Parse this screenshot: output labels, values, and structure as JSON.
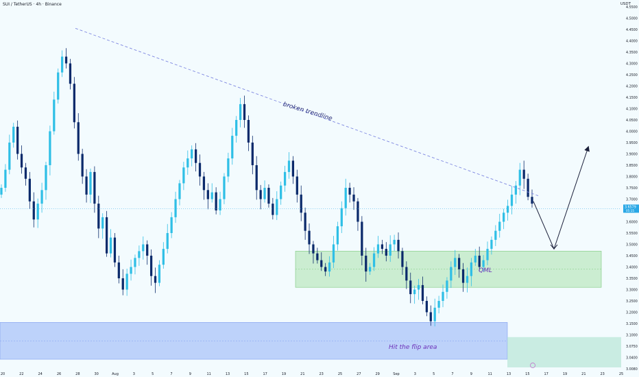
{
  "header": {
    "symbol_line": "SUI / TetherUS · 4h · Binance",
    "currency": "USDT"
  },
  "colors": {
    "background": "#f3fbfe",
    "candle_up": "#2fbfe6",
    "candle_down": "#0b2a6b",
    "trendline": "#7d86e0",
    "qml_zone": "#9bdc9b",
    "flip_zone": "#8fb0f5",
    "price_tag": "#29a8e6"
  },
  "chart_data": {
    "type": "candlestick",
    "symbol": "SUI / TetherUS",
    "interval": "4h",
    "exchange": "Binance",
    "quote": "USDT",
    "ylim": [
      3.0,
      4.6
    ],
    "y_ticks": [
      "4.5500",
      "4.5000",
      "4.4500",
      "4.4000",
      "4.3500",
      "4.3000",
      "4.2500",
      "4.2000",
      "4.1500",
      "4.1000",
      "4.0500",
      "4.0000",
      "3.9500",
      "3.9000",
      "3.8500",
      "3.8000",
      "3.7500",
      "3.7000",
      "3.6500",
      "3.6000",
      "3.5500",
      "3.5000",
      "3.4500",
      "3.4000",
      "3.3500",
      "3.3000",
      "3.2500",
      "3.2000",
      "3.1500",
      "3.1000",
      "3.0750",
      "3.0400",
      "3.0080"
    ],
    "x_ticks": [
      "20",
      "22",
      "24",
      "26",
      "28",
      "30",
      "Aug",
      "3",
      "5",
      "7",
      "9",
      "11",
      "13",
      "15",
      "17",
      "19",
      "21",
      "23",
      "25",
      "27",
      "29",
      "Sep",
      "3",
      "5",
      "7",
      "9",
      "11",
      "13",
      "15",
      "17",
      "19",
      "21",
      "23",
      "25"
    ],
    "current_price": "3.6579",
    "price_tag_sub": "05:15",
    "closes": [
      3.75,
      3.83,
      3.95,
      4.02,
      3.9,
      3.84,
      3.79,
      3.69,
      3.61,
      3.68,
      3.74,
      3.85,
      4.0,
      4.14,
      4.26,
      4.33,
      4.3,
      4.21,
      4.04,
      3.9,
      3.8,
      3.72,
      3.82,
      3.68,
      3.57,
      3.62,
      3.46,
      3.53,
      3.42,
      3.35,
      3.3,
      3.37,
      3.4,
      3.44,
      3.47,
      3.5,
      3.45,
      3.36,
      3.33,
      3.41,
      3.48,
      3.55,
      3.62,
      3.7,
      3.77,
      3.84,
      3.88,
      3.92,
      3.86,
      3.8,
      3.74,
      3.7,
      3.73,
      3.65,
      3.7,
      3.8,
      3.88,
      3.98,
      4.05,
      4.12,
      4.05,
      3.95,
      3.85,
      3.74,
      3.7,
      3.75,
      3.68,
      3.63,
      3.7,
      3.76,
      3.82,
      3.87,
      3.8,
      3.72,
      3.64,
      3.56,
      3.5,
      3.46,
      3.43,
      3.4,
      3.38,
      3.42,
      3.5,
      3.58,
      3.66,
      3.75,
      3.72,
      3.69,
      3.6,
      3.45,
      3.38,
      3.4,
      3.46,
      3.5,
      3.48,
      3.45,
      3.5,
      3.52,
      3.47,
      3.4,
      3.34,
      3.28,
      3.3,
      3.32,
      3.25,
      3.2,
      3.16,
      3.22,
      3.25,
      3.29,
      3.34,
      3.4,
      3.44,
      3.39,
      3.33,
      3.36,
      3.42,
      3.45,
      3.4,
      3.43,
      3.48,
      3.52,
      3.56,
      3.6,
      3.64,
      3.67,
      3.72,
      3.76,
      3.83,
      3.79,
      3.71,
      3.68
    ],
    "annotations": [
      {
        "type": "trendline",
        "label": "broken trendline"
      },
      {
        "type": "zone",
        "label": "QML",
        "top": 3.47,
        "bottom": 3.31
      },
      {
        "type": "zone",
        "label": "Hit the flip area",
        "top": 3.155,
        "bottom": 3.035
      },
      {
        "type": "projection",
        "points": [
          3.69,
          3.48,
          3.93
        ]
      }
    ]
  }
}
